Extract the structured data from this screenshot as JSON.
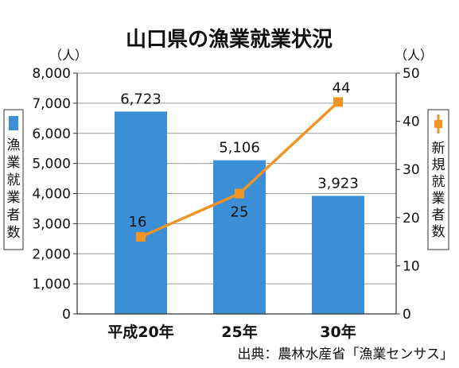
{
  "chart_data": {
    "type": "bar+line",
    "title": "山口県の漁業就業状況",
    "categories": [
      "平成20年",
      "25年",
      "30年"
    ],
    "series": [
      {
        "name": "漁業就業者数",
        "type": "bar",
        "axis": "left",
        "values": [
          6723,
          5106,
          3923
        ],
        "labels": [
          "6,723",
          "5,106",
          "3,923"
        ],
        "color": "#3b8fd6"
      },
      {
        "name": "新規就業者数",
        "type": "line",
        "axis": "right",
        "values": [
          16,
          25,
          44
        ],
        "labels": [
          "16",
          "25",
          "44"
        ],
        "color": "#f29423"
      }
    ],
    "y_left": {
      "unit": "（人）",
      "lim": [
        0,
        8000
      ],
      "ticks": [
        "0",
        "1,000",
        "2,000",
        "3,000",
        "4,000",
        "5,000",
        "6,000",
        "7,000",
        "8,000"
      ]
    },
    "y_right": {
      "unit": "（人）",
      "lim": [
        0,
        50
      ],
      "ticks": [
        "0",
        "10",
        "20",
        "30",
        "40",
        "50"
      ]
    },
    "grid": true,
    "source": "出典：農林水産省「漁業センサス」"
  }
}
